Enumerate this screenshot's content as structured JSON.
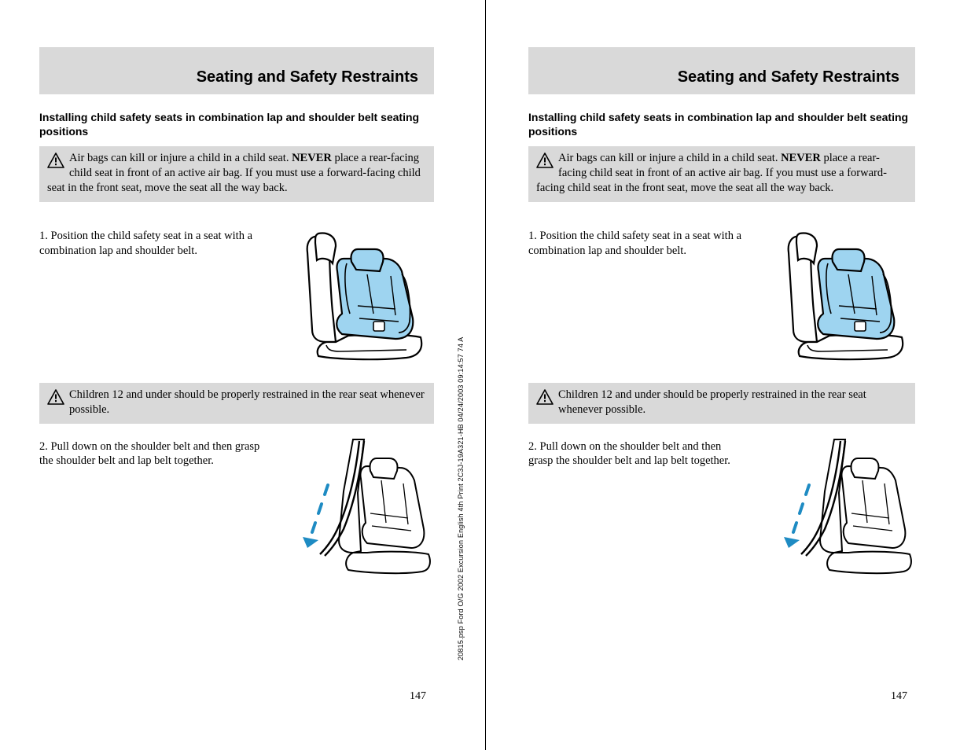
{
  "colors": {
    "band_bg": "#d9d9d9",
    "seat_fill": "#9ed4f0",
    "arrow": "#1e8bc3",
    "line": "#000000"
  },
  "section_title": "Seating and Safety Restraints",
  "subheading": "Installing child safety seats in combination lap and shoulder belt seating positions",
  "warning1_pre": "Air bags can kill or injure a child in a child seat. ",
  "warning1_bold": "NEVER",
  "warning1_post": " place a rear-facing child seat in front of an active air bag. If you must use a forward-facing child seat in the front seat, move the seat all the way back.",
  "step1": "1. Position the child safety seat in a seat with a combination lap and shoulder belt.",
  "warning2": "Children 12 and under should be properly restrained in the rear seat whenever possible.",
  "step2": "2. Pull down on the shoulder belt and then grasp the shoulder belt and lap belt together.",
  "page_number": "147",
  "spine": "20815.psp Ford O/G 2002 Excursion English 4th Print 2C3J-19A321-HB  04/24/2003 09:14:57 74 A"
}
